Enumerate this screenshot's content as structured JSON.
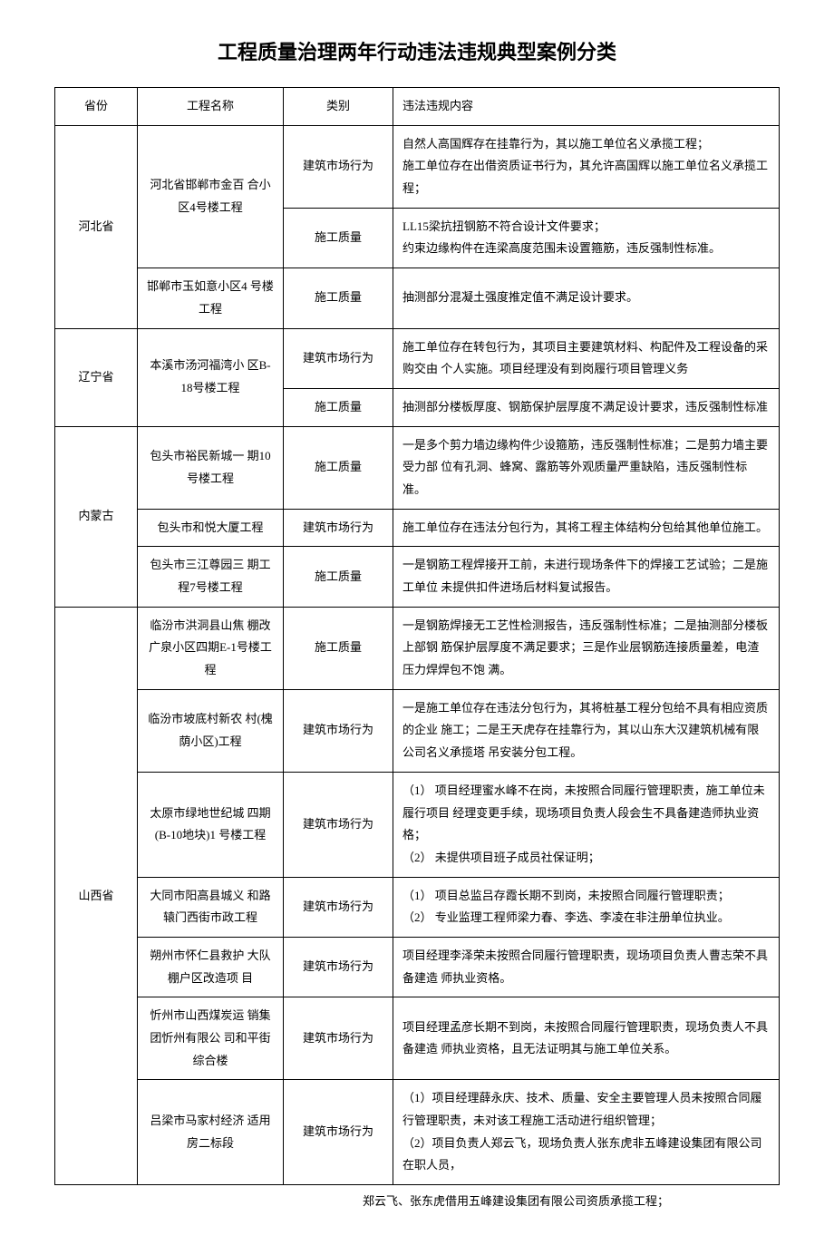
{
  "title": "工程质量治理两年行动违法违规典型案例分类",
  "headers": {
    "province": "省份",
    "project": "工程名称",
    "category": "类别",
    "content": "违法违规内容"
  },
  "rows": [
    {
      "province": "河北省",
      "province_rowspan": 3,
      "project": "河北省邯郸市金百 合小区4号楼工程",
      "project_rowspan": 2,
      "category": "建筑市场行为",
      "content": "自然人高国辉存在挂靠行为，其以施工单位名义承揽工程；\n施工单位存在出借资质证书行为，其允许高国辉以施工单位名义承揽工程；"
    },
    {
      "category": "施工质量",
      "content": "LL15梁抗扭钢筋不符合设计文件要求；\n约束边缘构件在连梁高度范围未设置箍筋，违反强制性标准。"
    },
    {
      "project": "邯郸市玉如意小区4 号楼工程",
      "project_rowspan": 1,
      "category": "施工质量",
      "content": "抽测部分混凝土强度推定值不满足设计要求。"
    },
    {
      "province": "辽宁省",
      "province_rowspan": 2,
      "project": "本溪市汤河福湾小 区B-18号楼工程",
      "project_rowspan": 2,
      "category": "建筑市场行为",
      "content": "施工单位存在转包行为，其项目主要建筑材料、构配件及工程设备的采购交由 个人实施。项目经理没有到岗履行项目管理义务"
    },
    {
      "category": "施工质量",
      "content": "抽测部分楼板厚度、钢筋保护层厚度不满足设计要求，违反强制性标准"
    },
    {
      "province": "内蒙古",
      "province_rowspan": 3,
      "project": "包头市裕民新城一 期10号楼工程",
      "project_rowspan": 1,
      "category": "施工质量",
      "content": "一是多个剪力墙边缘构件少设箍筋，违反强制性标准；二是剪力墙主要受力部 位有孔洞、蜂窝、露筋等外观质量严重缺陷，违反强制性标准。"
    },
    {
      "project": "包头市和悦大厦工程",
      "project_rowspan": 1,
      "category": "建筑市场行为",
      "content": "施工单位存在违法分包行为，其将工程主体结构分包给其他单位施工。"
    },
    {
      "project": "包头市三江尊园三 期工程7号楼工程",
      "project_rowspan": 1,
      "category": "施工质量",
      "content": "一是钢筋工程焊接开工前，未进行现场条件下的焊接工艺试验；二是施工单位 未提供扣件进场后材料复试报告。"
    },
    {
      "province": "山西省",
      "province_rowspan": 7,
      "project": "临汾市洪洞县山焦 棚改广泉小区四期E-1号楼工程",
      "project_rowspan": 1,
      "category": "施工质量",
      "content": "一是钢筋焊接无工艺性检测报告，违反强制性标准；二是抽测部分楼板上部钢 筋保护层厚度不满足要求；三是作业层钢筋连接质量差，电渣压力焊焊包不饱 满。"
    },
    {
      "project": "临汾市坡底村新农 村(槐荫小区)工程",
      "project_rowspan": 1,
      "category": "建筑市场行为",
      "content": "一是施工单位存在违法分包行为，其将桩基工程分包给不具有相应资质的企业 施工；二是王天虎存在挂靠行为，其以山东大汉建筑机械有限公司名义承揽塔 吊安装分包工程。"
    },
    {
      "project": "太原市绿地世纪城 四期(B-10地块)1 号楼工程",
      "project_rowspan": 1,
      "category": "建筑市场行为",
      "content": "（1） 项目经理蜜水峰不在岗，未按照合同履行管理职责，施工单位未履行项目 经理变更手续，现场项目负责人段会生不具备建造师执业资格；\n（2） 未提供项目班子成员社保证明；"
    },
    {
      "project": "大同市阳高县城义 和路辕门西街市政工程",
      "project_rowspan": 1,
      "category": "建筑市场行为",
      "content": "（1） 项目总监吕存霞长期不到岗，未按照合同履行管理职责；\n（2） 专业监理工程师梁力春、李选、李凌在非注册单位执业。"
    },
    {
      "project": "朔州市怀仁县救护 大队棚户区改造项 目",
      "project_rowspan": 1,
      "category": "建筑市场行为",
      "content": "项目经理李泽荣未按照合同履行管理职责，现场项目负责人曹志荣不具备建造 师执业资格。"
    },
    {
      "project": "忻州市山西煤炭运 销集团忻州有限公 司和平街综合楼",
      "project_rowspan": 1,
      "category": "建筑市场行为",
      "content": "项目经理孟彦长期不到岗，未按照合同履行管理职责，现场负责人不具备建造 师执业资格，且无法证明其与施工单位关系。"
    },
    {
      "project": "吕梁市马家村经济 适用房二标段",
      "project_rowspan": 1,
      "category": "建筑市场行为",
      "content": "（1）项目经理薛永庆、技术、质量、安全主要管理人员未按照合同履行管理职责，未对该工程施工活动进行组织管理；\n（2）项目负责人郑云飞，现场负责人张东虎非五峰建设集团有限公司在职人员，"
    }
  ],
  "footnote": "郑云飞、张东虎借用五峰建设集团有限公司资质承揽工程；"
}
